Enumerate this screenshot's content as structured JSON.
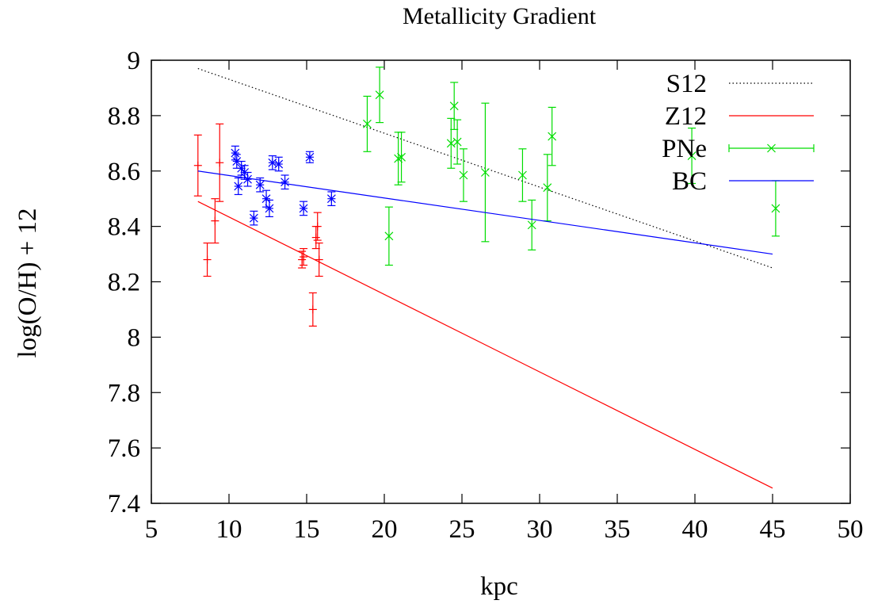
{
  "chart_data": {
    "type": "scatter",
    "title": "Metallicity Gradient",
    "xlabel": "kpc",
    "ylabel": "log(O/H) + 12",
    "xlim": [
      5,
      50
    ],
    "ylim": [
      7.4,
      9
    ],
    "xticks": [
      5,
      10,
      15,
      20,
      25,
      30,
      35,
      40,
      45,
      50
    ],
    "yticks": [
      7.4,
      7.6,
      7.8,
      8,
      8.2,
      8.4,
      8.6,
      8.8,
      9
    ],
    "ytick_labels": [
      "7.4",
      "7.6",
      "7.8",
      "8",
      "8.2",
      "8.4",
      "8.6",
      "8.8",
      "9"
    ],
    "legend_position": "top-right",
    "series": [
      {
        "name": "S12",
        "kind": "line",
        "style": "dotted",
        "color": "#000000",
        "x": [
          8,
          45
        ],
        "y": [
          8.97,
          8.25
        ]
      },
      {
        "name": "Z12",
        "kind": "line",
        "style": "solid",
        "color": "#ff0000",
        "x": [
          8,
          45
        ],
        "y": [
          8.49,
          7.455
        ]
      },
      {
        "name": "",
        "kind": "errorbars",
        "marker": "plus",
        "color": "#ff0000",
        "points": [
          {
            "x": 8.0,
            "y": 8.62,
            "err": 0.11
          },
          {
            "x": 8.6,
            "y": 8.28,
            "err": 0.06
          },
          {
            "x": 9.1,
            "y": 8.42,
            "err": 0.08
          },
          {
            "x": 9.4,
            "y": 8.63,
            "err": 0.14
          },
          {
            "x": 14.7,
            "y": 8.28,
            "err": 0.03
          },
          {
            "x": 14.8,
            "y": 8.29,
            "err": 0.03
          },
          {
            "x": 15.4,
            "y": 8.1,
            "err": 0.06
          },
          {
            "x": 15.6,
            "y": 8.36,
            "err": 0.04
          },
          {
            "x": 15.7,
            "y": 8.4,
            "err": 0.05
          },
          {
            "x": 15.8,
            "y": 8.28,
            "err": 0.06
          }
        ]
      },
      {
        "name": "PNe",
        "kind": "errorbars",
        "marker": "cross",
        "color": "#00dd00",
        "points": [
          {
            "x": 18.9,
            "y": 8.77,
            "err": 0.1
          },
          {
            "x": 19.7,
            "y": 8.875,
            "err": 0.1
          },
          {
            "x": 20.3,
            "y": 8.365,
            "err": 0.105
          },
          {
            "x": 20.9,
            "y": 8.645,
            "err": 0.095
          },
          {
            "x": 21.1,
            "y": 8.65,
            "err": 0.09
          },
          {
            "x": 24.3,
            "y": 8.7,
            "err": 0.09
          },
          {
            "x": 24.5,
            "y": 8.835,
            "err": 0.085
          },
          {
            "x": 24.7,
            "y": 8.705,
            "err": 0.08
          },
          {
            "x": 25.1,
            "y": 8.585,
            "err": 0.095
          },
          {
            "x": 26.5,
            "y": 8.595,
            "err": 0.25
          },
          {
            "x": 28.9,
            "y": 8.585,
            "err": 0.095
          },
          {
            "x": 29.5,
            "y": 8.405,
            "err": 0.09
          },
          {
            "x": 30.5,
            "y": 8.54,
            "err": 0.12
          },
          {
            "x": 30.8,
            "y": 8.725,
            "err": 0.105
          },
          {
            "x": 39.8,
            "y": 8.655,
            "err": 0.1
          },
          {
            "x": 45.2,
            "y": 8.465,
            "err": 0.1
          }
        ]
      },
      {
        "name": "BC",
        "kind": "line",
        "style": "solid",
        "color": "#0000ff",
        "x": [
          8,
          45
        ],
        "y": [
          8.6,
          8.3
        ]
      },
      {
        "name": "",
        "kind": "errorbars",
        "marker": "star",
        "color": "#0000ff",
        "points": [
          {
            "x": 10.4,
            "y": 8.665,
            "err": 0.025
          },
          {
            "x": 10.5,
            "y": 8.635,
            "err": 0.025
          },
          {
            "x": 10.6,
            "y": 8.545,
            "err": 0.03
          },
          {
            "x": 10.8,
            "y": 8.61,
            "err": 0.025
          },
          {
            "x": 11.0,
            "y": 8.595,
            "err": 0.025
          },
          {
            "x": 11.2,
            "y": 8.57,
            "err": 0.025
          },
          {
            "x": 11.6,
            "y": 8.43,
            "err": 0.025
          },
          {
            "x": 12.0,
            "y": 8.55,
            "err": 0.025
          },
          {
            "x": 12.4,
            "y": 8.5,
            "err": 0.03
          },
          {
            "x": 12.6,
            "y": 8.465,
            "err": 0.03
          },
          {
            "x": 12.8,
            "y": 8.63,
            "err": 0.025
          },
          {
            "x": 13.2,
            "y": 8.625,
            "err": 0.025
          },
          {
            "x": 13.6,
            "y": 8.56,
            "err": 0.025
          },
          {
            "x": 14.8,
            "y": 8.465,
            "err": 0.025
          },
          {
            "x": 15.2,
            "y": 8.65,
            "err": 0.02
          },
          {
            "x": 16.6,
            "y": 8.5,
            "err": 0.025
          }
        ]
      }
    ]
  }
}
